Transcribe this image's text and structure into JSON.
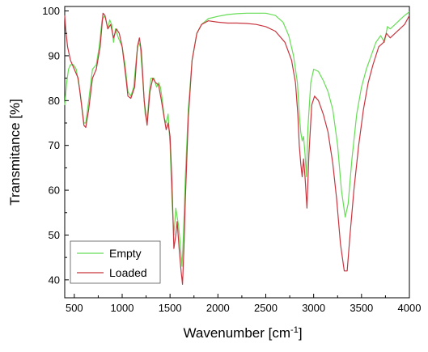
{
  "chart_data": {
    "type": "line",
    "xlabel": "Wavenumber [cm",
    "xlabel_sup": "-1",
    "xlabel_end": "]",
    "ylabel": "Transmitance [%]",
    "xlim": [
      400,
      4000
    ],
    "ylim": [
      36,
      101
    ],
    "x_ticks": [
      500,
      1000,
      1500,
      2000,
      2500,
      3000,
      3500,
      4000
    ],
    "y_ticks": [
      40,
      50,
      60,
      70,
      80,
      90,
      100
    ],
    "grid": false,
    "legend_position": "bottom-left",
    "series": [
      {
        "name": "Empty",
        "color": "#66dd55",
        "points": [
          [
            400,
            79
          ],
          [
            420,
            84
          ],
          [
            440,
            87
          ],
          [
            460,
            88
          ],
          [
            490,
            88
          ],
          [
            520,
            87
          ],
          [
            560,
            82
          ],
          [
            600,
            75
          ],
          [
            620,
            75
          ],
          [
            650,
            80
          ],
          [
            690,
            87
          ],
          [
            730,
            88
          ],
          [
            760,
            92
          ],
          [
            790,
            98
          ],
          [
            820,
            99
          ],
          [
            850,
            96
          ],
          [
            870,
            98
          ],
          [
            890,
            97
          ],
          [
            910,
            93
          ],
          [
            930,
            96
          ],
          [
            960,
            94
          ],
          [
            1000,
            92
          ],
          [
            1030,
            88
          ],
          [
            1060,
            82
          ],
          [
            1090,
            81
          ],
          [
            1120,
            83
          ],
          [
            1150,
            90
          ],
          [
            1170,
            93
          ],
          [
            1190,
            92
          ],
          [
            1210,
            86
          ],
          [
            1240,
            77
          ],
          [
            1260,
            75
          ],
          [
            1280,
            81
          ],
          [
            1300,
            85
          ],
          [
            1330,
            85
          ],
          [
            1360,
            83
          ],
          [
            1380,
            84
          ],
          [
            1400,
            83
          ],
          [
            1420,
            80
          ],
          [
            1440,
            76
          ],
          [
            1460,
            75
          ],
          [
            1480,
            77
          ],
          [
            1500,
            70
          ],
          [
            1520,
            58
          ],
          [
            1540,
            50
          ],
          [
            1560,
            56
          ],
          [
            1575,
            54
          ],
          [
            1590,
            52
          ],
          [
            1610,
            47
          ],
          [
            1625,
            43
          ],
          [
            1640,
            50
          ],
          [
            1660,
            63
          ],
          [
            1690,
            78
          ],
          [
            1730,
            89
          ],
          [
            1780,
            95
          ],
          [
            1830,
            97
          ],
          [
            1900,
            98.3
          ],
          [
            2000,
            98.8
          ],
          [
            2100,
            99.2
          ],
          [
            2200,
            99.4
          ],
          [
            2300,
            99.5
          ],
          [
            2400,
            99.5
          ],
          [
            2500,
            99.5
          ],
          [
            2600,
            99
          ],
          [
            2680,
            97.5
          ],
          [
            2740,
            94.5
          ],
          [
            2790,
            90
          ],
          [
            2830,
            84
          ],
          [
            2850,
            77
          ],
          [
            2865,
            73
          ],
          [
            2880,
            71
          ],
          [
            2895,
            72
          ],
          [
            2910,
            68
          ],
          [
            2925,
            63
          ],
          [
            2940,
            74
          ],
          [
            2970,
            84
          ],
          [
            3000,
            87
          ],
          [
            3050,
            86.5
          ],
          [
            3100,
            84.5
          ],
          [
            3150,
            82
          ],
          [
            3200,
            78
          ],
          [
            3250,
            70
          ],
          [
            3290,
            60
          ],
          [
            3330,
            54
          ],
          [
            3360,
            57
          ],
          [
            3400,
            67
          ],
          [
            3450,
            77
          ],
          [
            3500,
            83
          ],
          [
            3550,
            87
          ],
          [
            3600,
            90
          ],
          [
            3650,
            93
          ],
          [
            3700,
            94.5
          ],
          [
            3740,
            93
          ],
          [
            3770,
            96.5
          ],
          [
            3800,
            96
          ],
          [
            3850,
            97
          ],
          [
            3900,
            98
          ],
          [
            3950,
            99
          ],
          [
            4000,
            99.8
          ]
        ]
      },
      {
        "name": "Loaded",
        "color": "#c8353f",
        "points": [
          [
            400,
            99
          ],
          [
            410,
            96
          ],
          [
            430,
            92
          ],
          [
            460,
            89
          ],
          [
            500,
            87
          ],
          [
            540,
            85
          ],
          [
            570,
            80
          ],
          [
            600,
            74.5
          ],
          [
            620,
            74
          ],
          [
            650,
            78
          ],
          [
            690,
            85
          ],
          [
            730,
            87
          ],
          [
            770,
            92
          ],
          [
            800,
            99.5
          ],
          [
            820,
            99
          ],
          [
            850,
            96
          ],
          [
            880,
            97
          ],
          [
            910,
            94
          ],
          [
            940,
            96
          ],
          [
            970,
            95
          ],
          [
            1000,
            92
          ],
          [
            1040,
            85
          ],
          [
            1060,
            81
          ],
          [
            1090,
            80.5
          ],
          [
            1130,
            83
          ],
          [
            1160,
            92
          ],
          [
            1180,
            94
          ],
          [
            1200,
            91
          ],
          [
            1230,
            80
          ],
          [
            1260,
            74.5
          ],
          [
            1290,
            82
          ],
          [
            1320,
            85
          ],
          [
            1350,
            84
          ],
          [
            1380,
            83.5
          ],
          [
            1410,
            80
          ],
          [
            1440,
            76
          ],
          [
            1460,
            73.5
          ],
          [
            1480,
            75
          ],
          [
            1500,
            72
          ],
          [
            1520,
            62
          ],
          [
            1540,
            47
          ],
          [
            1560,
            50
          ],
          [
            1575,
            53
          ],
          [
            1595,
            47
          ],
          [
            1615,
            42
          ],
          [
            1630,
            39
          ],
          [
            1645,
            47
          ],
          [
            1660,
            58
          ],
          [
            1690,
            76
          ],
          [
            1730,
            89
          ],
          [
            1780,
            95
          ],
          [
            1830,
            97
          ],
          [
            1900,
            97.8
          ],
          [
            2000,
            97.5
          ],
          [
            2100,
            97.3
          ],
          [
            2200,
            97.3
          ],
          [
            2300,
            97.2
          ],
          [
            2400,
            97
          ],
          [
            2500,
            96.5
          ],
          [
            2600,
            95.5
          ],
          [
            2700,
            93
          ],
          [
            2770,
            89
          ],
          [
            2810,
            84
          ],
          [
            2835,
            77
          ],
          [
            2850,
            70
          ],
          [
            2865,
            66
          ],
          [
            2880,
            63
          ],
          [
            2895,
            67
          ],
          [
            2910,
            63
          ],
          [
            2930,
            56
          ],
          [
            2950,
            68
          ],
          [
            2980,
            79
          ],
          [
            3010,
            81
          ],
          [
            3050,
            80
          ],
          [
            3100,
            77
          ],
          [
            3150,
            73
          ],
          [
            3200,
            66
          ],
          [
            3240,
            58
          ],
          [
            3280,
            48
          ],
          [
            3320,
            42
          ],
          [
            3350,
            42
          ],
          [
            3380,
            50
          ],
          [
            3420,
            60
          ],
          [
            3470,
            70
          ],
          [
            3520,
            78
          ],
          [
            3570,
            84
          ],
          [
            3620,
            88
          ],
          [
            3680,
            92
          ],
          [
            3730,
            93
          ],
          [
            3760,
            95
          ],
          [
            3800,
            94
          ],
          [
            3850,
            95
          ],
          [
            3900,
            96
          ],
          [
            3950,
            97
          ],
          [
            4000,
            99
          ]
        ]
      }
    ]
  }
}
